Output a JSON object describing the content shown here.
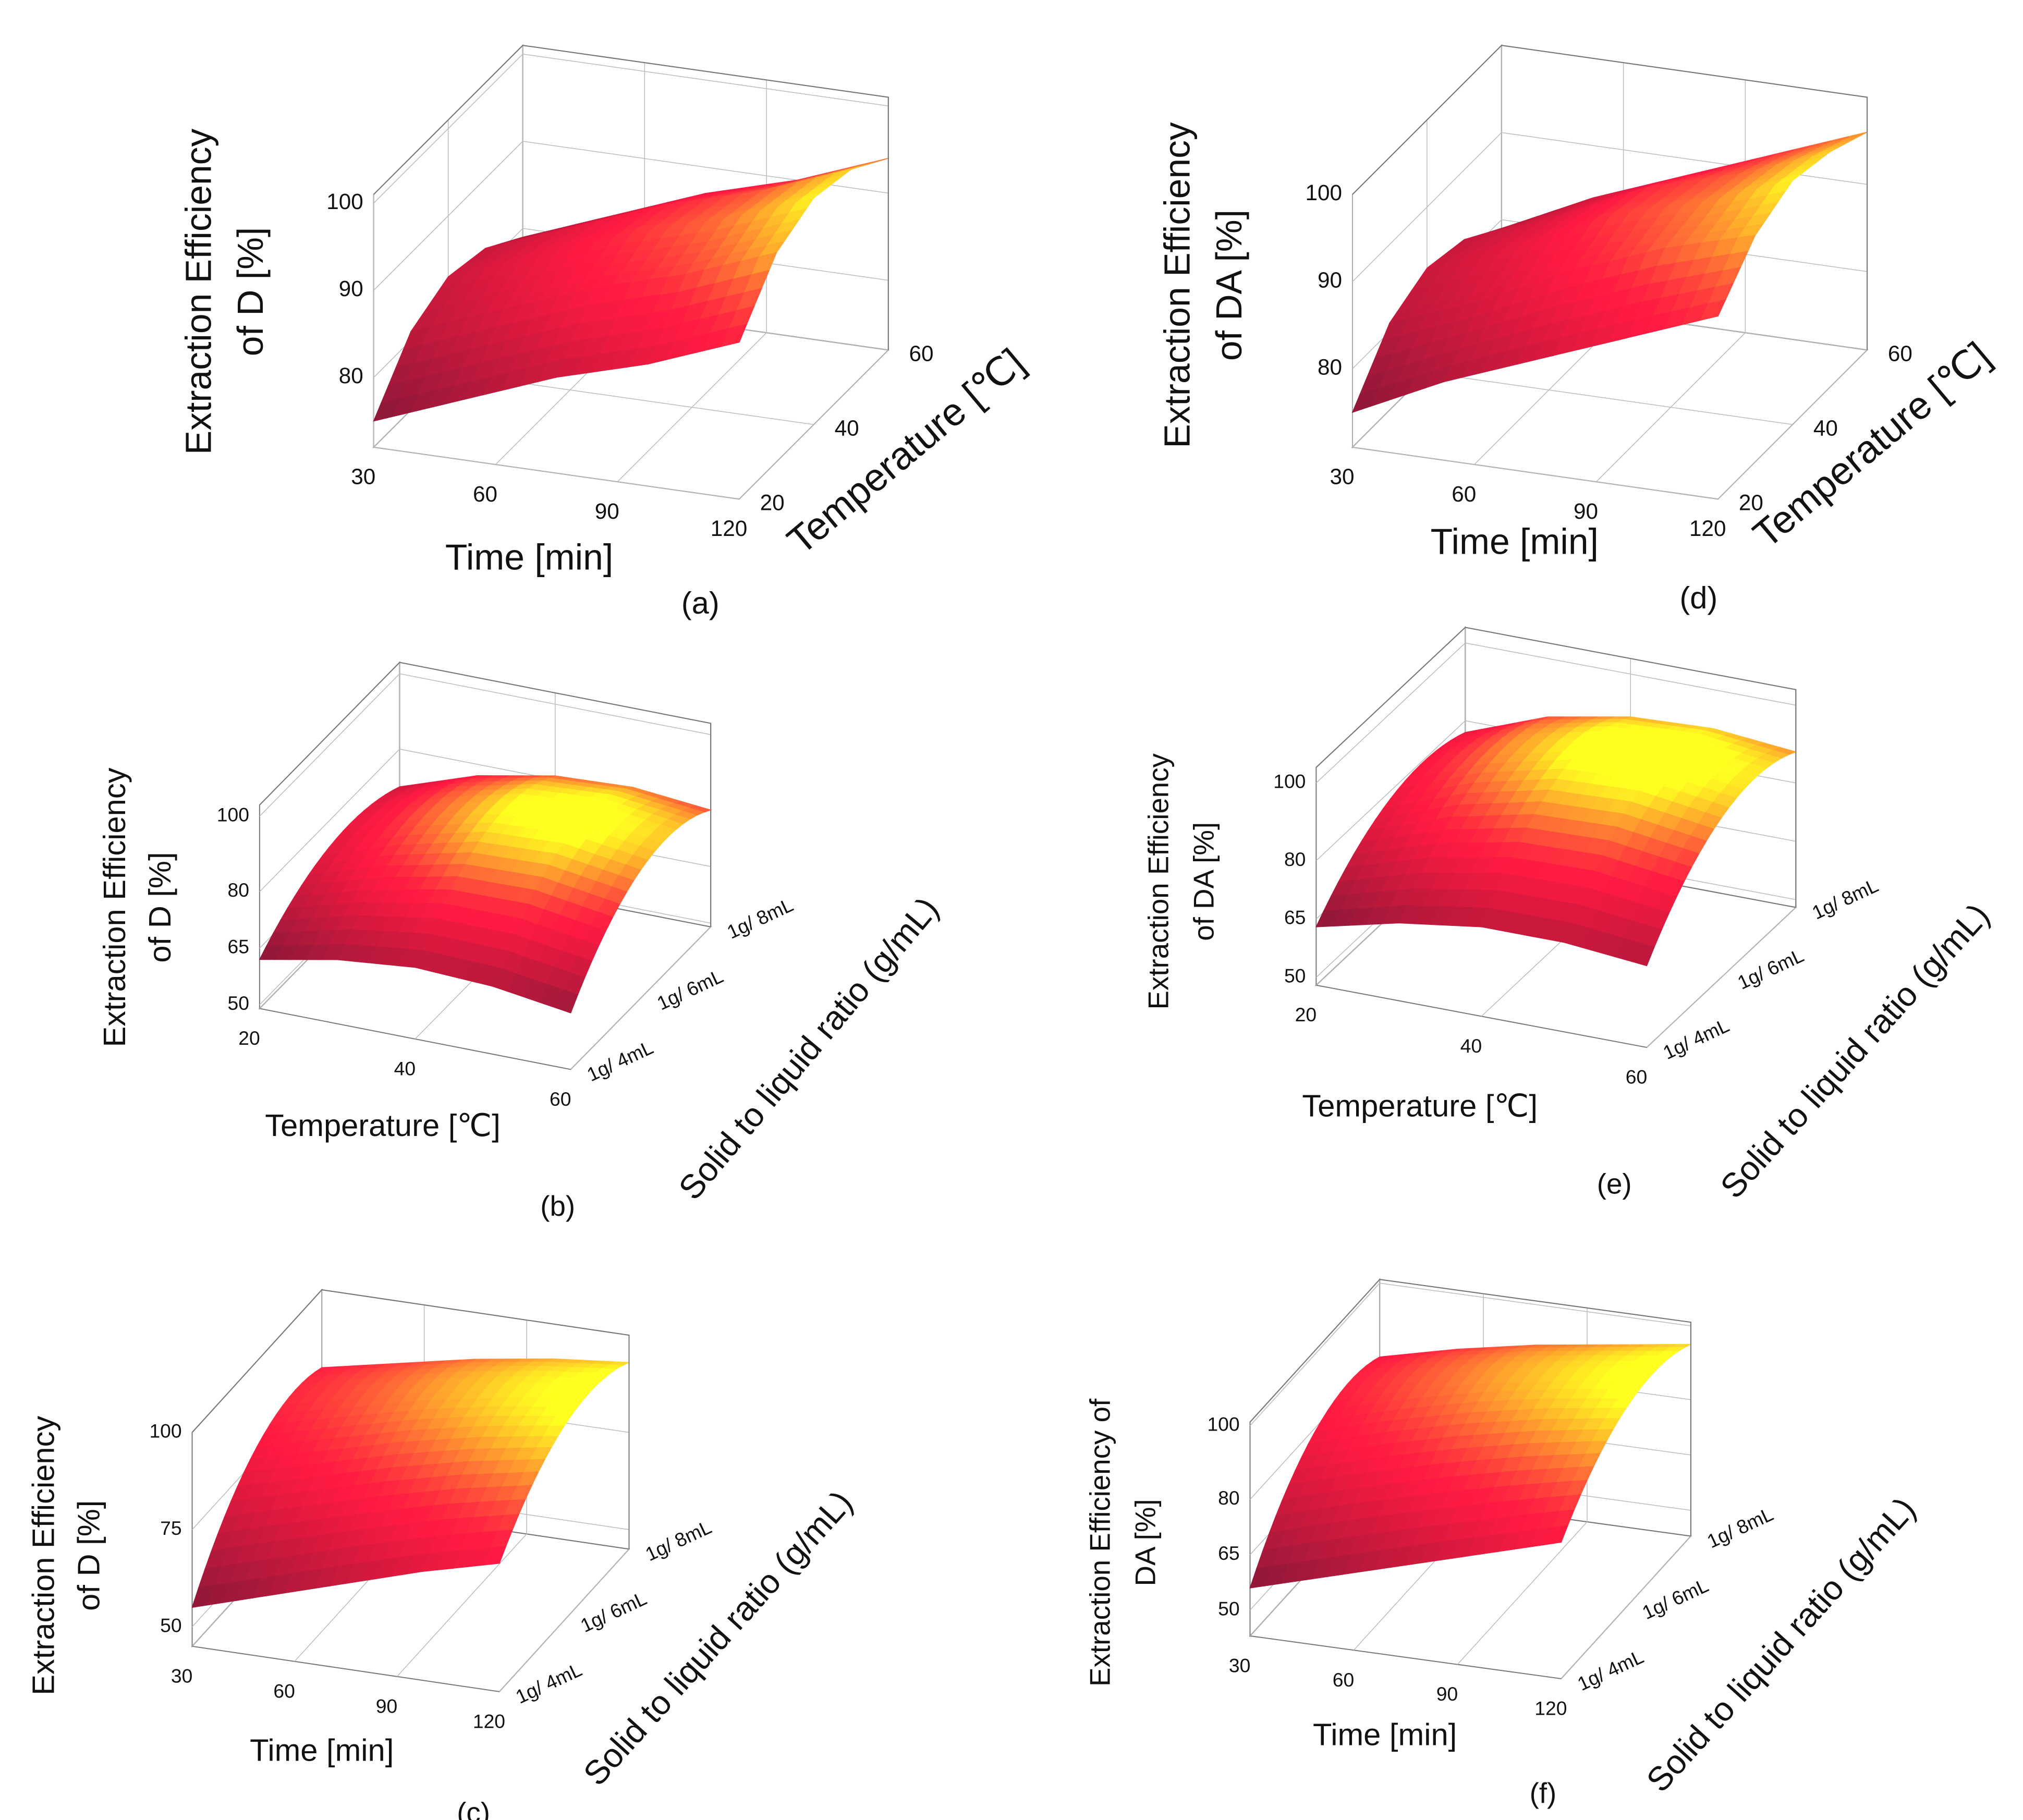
{
  "chart_data": [
    {
      "type": "surface3d",
      "label": "(a)",
      "zlabel": [
        "Extraction Efficiency",
        "of D [%]"
      ],
      "xlabel": "Time [min]",
      "ylabel": "Temperature [℃]",
      "xlim": [
        30,
        120
      ],
      "xticks": [
        30,
        60,
        90,
        120
      ],
      "ylim": [
        20,
        60
      ],
      "yticks": [
        20,
        40,
        60
      ],
      "zlim": [
        72,
        101
      ],
      "zticks": [
        80,
        90,
        100
      ],
      "colorscale": [
        "#8a1838",
        "#ff1a42",
        "#ffff20"
      ],
      "surface": {
        "x": [
          30,
          52.5,
          75,
          97.5,
          120
        ],
        "y": [
          20,
          30,
          40,
          50,
          60
        ],
        "z": [
          [
            75,
            79,
            83,
            86,
            90
          ],
          [
            81,
            85,
            89,
            92,
            96
          ],
          [
            83,
            87,
            91,
            94,
            98
          ],
          [
            82,
            86,
            90,
            93,
            97
          ],
          [
            79,
            83,
            87,
            90,
            94
          ]
        ]
      }
    },
    {
      "type": "surface3d",
      "label": "(b)",
      "zlabel": [
        "Extraction Efficiency",
        "of D [%]"
      ],
      "xlabel": "Temperature [℃]",
      "ylabel": "Solid to liquid ratio (g/mL)",
      "xlim": [
        20,
        60
      ],
      "xticks": [
        20,
        40,
        60
      ],
      "ycategories": [
        "1g/ 4mL",
        "1g/ 6mL",
        "1g/ 8mL"
      ],
      "zlim": [
        49,
        103
      ],
      "zticks": [
        50,
        65,
        80,
        100
      ],
      "colorscale": [
        "#8a1838",
        "#ff1a42",
        "#ffff20"
      ],
      "surface": {
        "x": [
          20,
          30,
          40,
          50,
          60
        ],
        "z": [
          [
            62,
            66,
            68,
            67,
            64
          ],
          [
            73,
            80,
            85,
            86,
            83
          ],
          [
            70,
            77,
            81,
            82,
            80
          ]
        ]
      }
    },
    {
      "type": "surface3d",
      "label": "(c)",
      "zlabel": [
        "Extraction Efficiency",
        "of D [%]"
      ],
      "xlabel": "Time [min]",
      "ylabel": "Solid to liquid ratio (g/mL)",
      "xlim": [
        30,
        120
      ],
      "xticks": [
        30,
        60,
        90,
        120
      ],
      "ycategories": [
        "1g/ 4mL",
        "1g/ 6mL",
        "1g/ 8mL"
      ],
      "zlim": [
        45,
        100
      ],
      "zticks": [
        50,
        75,
        100
      ],
      "colorscale": [
        "#8a1838",
        "#ff1a42",
        "#ffff20"
      ],
      "surface": {
        "x": [
          30,
          52.5,
          75,
          97.5,
          120
        ],
        "z": [
          [
            55,
            61,
            67,
            73,
            78
          ],
          [
            78,
            83,
            88,
            92,
            95
          ],
          [
            80,
            84,
            88,
            91,
            93
          ]
        ]
      }
    },
    {
      "type": "surface3d",
      "label": "(d)",
      "zlabel": [
        "Extraction Efficiency",
        "of DA [%]"
      ],
      "xlabel": "Time [min]",
      "ylabel": "Temperature [℃]",
      "xlim": [
        30,
        120
      ],
      "xticks": [
        30,
        60,
        90,
        120
      ],
      "ylim": [
        20,
        60
      ],
      "yticks": [
        20,
        40,
        60
      ],
      "zlim": [
        71,
        100
      ],
      "zticks": [
        80,
        90,
        100
      ],
      "colorscale": [
        "#8a1838",
        "#ff1a42",
        "#ffff20"
      ],
      "surface": {
        "x": [
          30,
          52.5,
          75,
          97.5,
          120
        ],
        "y": [
          20,
          30,
          40,
          50,
          60
        ],
        "z": [
          [
            75,
            80,
            84,
            88,
            92
          ],
          [
            81,
            85,
            90,
            94,
            97
          ],
          [
            83,
            87,
            92,
            95,
            99
          ],
          [
            82,
            86,
            91,
            94,
            98
          ],
          [
            79,
            84,
            88,
            92,
            96
          ]
        ]
      }
    },
    {
      "type": "surface3d",
      "label": "(e)",
      "zlabel": [
        "Extraction Efficiency",
        "of DA [%]"
      ],
      "xlabel": "Temperature [℃]",
      "ylabel": "Solid to liquid ratio (g/mL)",
      "xlim": [
        20,
        60
      ],
      "xticks": [
        20,
        40,
        60
      ],
      "ycategories": [
        "1g/ 4mL",
        "1g/ 6mL",
        "1g/ 8mL"
      ],
      "zlim": [
        48,
        104
      ],
      "zticks": [
        50,
        65,
        80,
        100
      ],
      "colorscale": [
        "#8a1838",
        "#ff1a42",
        "#ffff20"
      ],
      "surface": {
        "x": [
          20,
          30,
          40,
          50,
          60
        ],
        "z": [
          [
            63,
            68,
            71,
            71,
            69
          ],
          [
            78,
            86,
            91,
            92,
            89
          ],
          [
            77,
            85,
            89,
            90,
            88
          ]
        ]
      }
    },
    {
      "type": "surface3d",
      "label": "(f)",
      "zlabel": [
        "Extraction Efficiency of",
        "DA [%]"
      ],
      "xlabel": "Time [min]",
      "ylabel": "Solid to liquid ratio (g/mL)",
      "xlim": [
        30,
        120
      ],
      "xticks": [
        30,
        60,
        90,
        120
      ],
      "ycategories": [
        "1g/ 4mL",
        "1g/ 6mL",
        "1g/ 8mL"
      ],
      "zlim": [
        43,
        101
      ],
      "zticks": [
        50,
        65,
        80,
        100
      ],
      "colorscale": [
        "#8a1838",
        "#ff1a42",
        "#ffff20"
      ],
      "surface": {
        "x": [
          30,
          52.5,
          75,
          97.5,
          120
        ],
        "z": [
          [
            56,
            62,
            68,
            74,
            80
          ],
          [
            79,
            85,
            90,
            94,
            97
          ],
          [
            80,
            85,
            89,
            92,
            95
          ]
        ]
      }
    }
  ]
}
